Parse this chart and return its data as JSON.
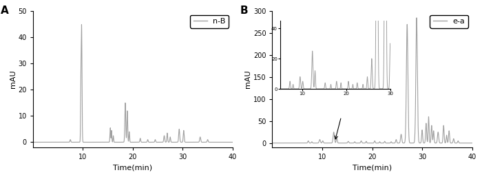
{
  "panel_A": {
    "label": "A",
    "legend": "n-B",
    "ylabel": "mAU",
    "xlabel": "Time(min)",
    "xlim": [
      0,
      40
    ],
    "ylim": [
      -2,
      50
    ],
    "yticks": [
      0,
      10,
      20,
      30,
      40,
      50
    ],
    "xticks": [
      10,
      20,
      30,
      40
    ],
    "line_color": "#a0a0a0",
    "line_width": 0.8
  },
  "panel_B": {
    "label": "B",
    "legend": "e-a",
    "ylabel": "mAU",
    "xlabel": "Time(min)",
    "xlim": [
      0,
      40
    ],
    "ylim": [
      -10,
      300
    ],
    "yticks": [
      0,
      50,
      100,
      150,
      200,
      250,
      300
    ],
    "xticks": [
      10,
      20,
      30,
      40
    ],
    "line_color": "#a0a0a0",
    "line_width": 0.8
  },
  "inset": {
    "xlim": [
      5,
      30
    ],
    "ylim": [
      0,
      45
    ],
    "yticks": [
      0,
      20,
      40
    ],
    "xticks": [
      10,
      20,
      30
    ],
    "line_color": "#a0a0a0",
    "line_width": 0.7
  },
  "bg_color": "#ffffff",
  "text_color": "#000000"
}
